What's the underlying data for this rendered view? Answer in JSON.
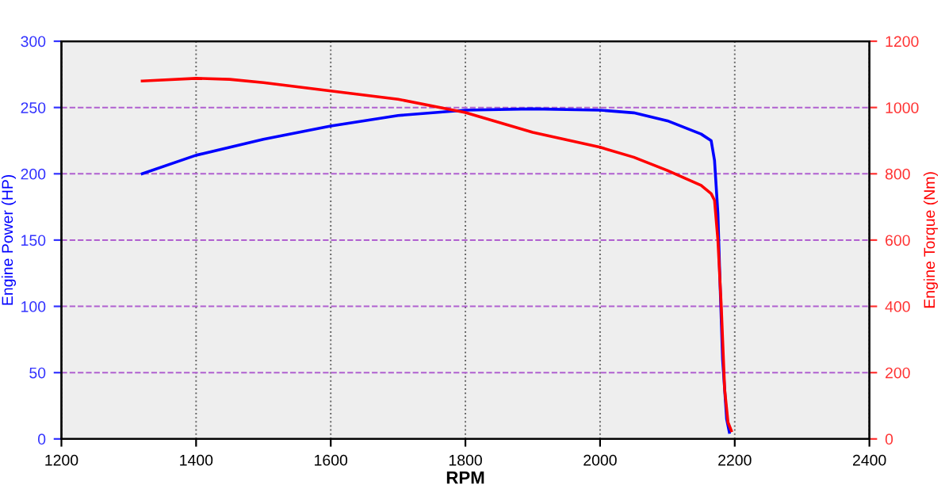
{
  "chart_data": {
    "type": "line",
    "xlabel": "RPM",
    "ylabel": "Engine Power (HP)",
    "y2label": "Engine Torque (Nm)",
    "xlim": [
      1200,
      2400
    ],
    "xticks": [
      1200,
      1400,
      1600,
      1800,
      2000,
      2200,
      2400
    ],
    "ylim": [
      0,
      300
    ],
    "yticks": [
      0,
      50,
      100,
      150,
      200,
      250,
      300
    ],
    "y2lim": [
      0,
      1200
    ],
    "y2ticks": [
      0,
      200,
      400,
      600,
      800,
      1000,
      1200
    ],
    "grid": true,
    "marker": "none",
    "line_style": "solid",
    "series": [
      {
        "color": "#0000ff",
        "x": [
          1320,
          1400,
          1500,
          1600,
          1700,
          1800,
          1900,
          2000,
          2050,
          2100,
          2150,
          2165,
          2170,
          2175,
          2178,
          2182,
          2188,
          2192
        ],
        "values": [
          200,
          214,
          226,
          236,
          244,
          248,
          249,
          248,
          246,
          240,
          230,
          225,
          210,
          170,
          120,
          60,
          15,
          5
        ]
      },
      {
        "color": "#ff0000",
        "axis": "y2",
        "x": [
          1320,
          1400,
          1450,
          1500,
          1600,
          1700,
          1800,
          1900,
          2000,
          2050,
          2100,
          2150,
          2165,
          2170,
          2175,
          2180,
          2185,
          2190,
          2195
        ],
        "values": [
          1080,
          1088,
          1085,
          1075,
          1050,
          1025,
          985,
          925,
          880,
          850,
          810,
          765,
          740,
          720,
          600,
          400,
          150,
          50,
          25
        ]
      }
    ]
  }
}
